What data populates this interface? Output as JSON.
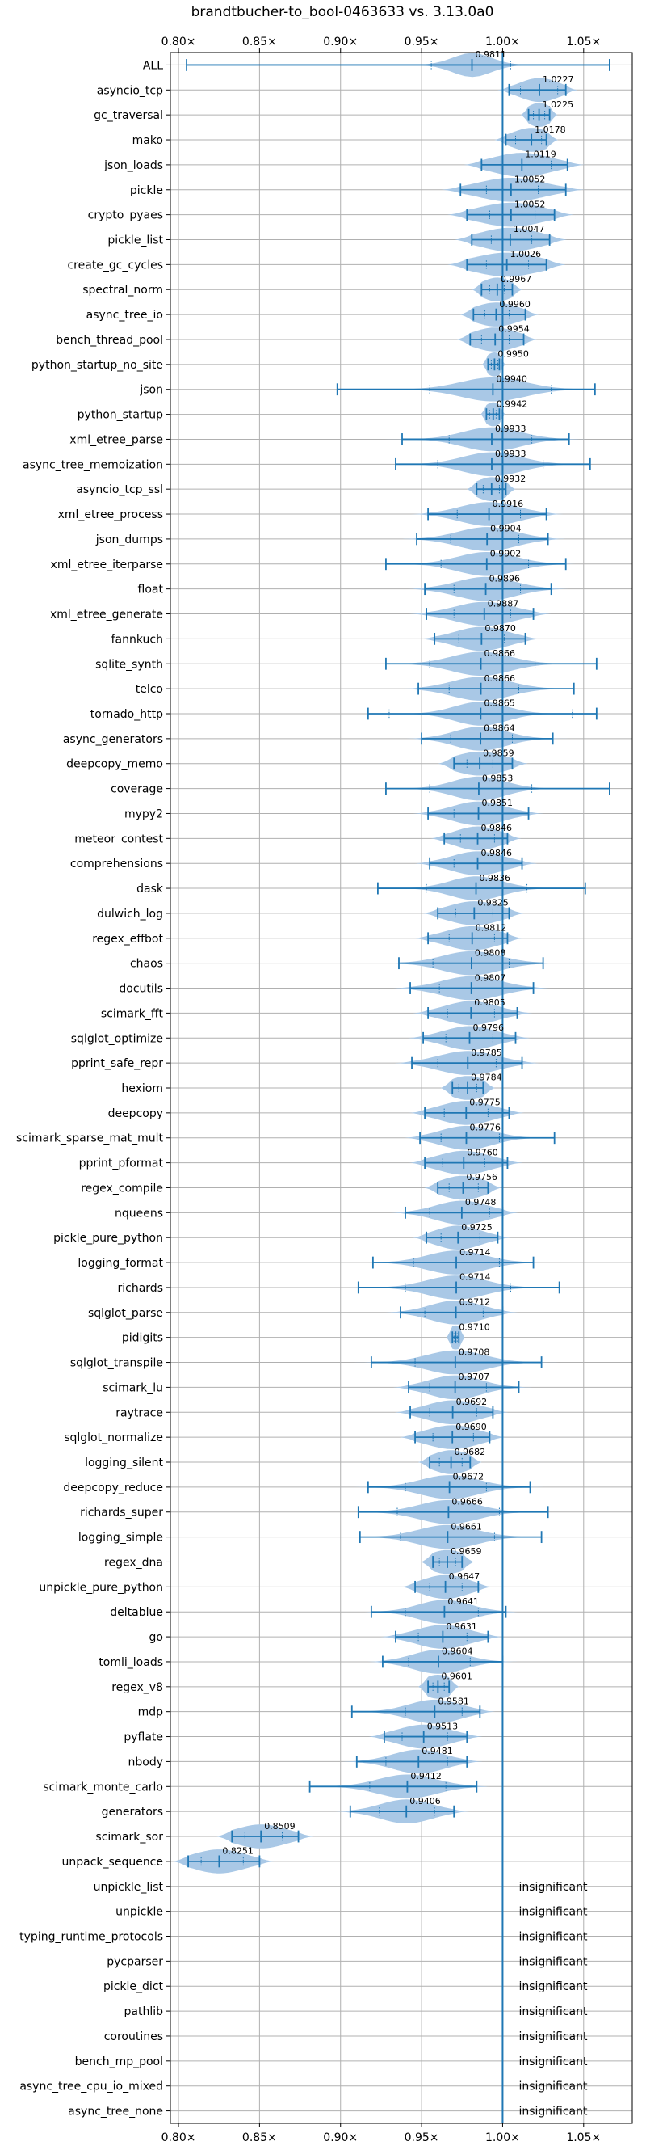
{
  "chart_data": {
    "type": "violin",
    "title": "brandtbucher-to_bool-0463633 vs. 3.13.0a0",
    "x_ticks": [
      {
        "value": 0.8,
        "label": "0.80×"
      },
      {
        "value": 0.85,
        "label": "0.85×"
      },
      {
        "value": 0.9,
        "label": "0.90×"
      },
      {
        "value": 0.95,
        "label": "0.95×"
      },
      {
        "value": 1.0,
        "label": "1.00×"
      },
      {
        "value": 1.05,
        "label": "1.05×"
      }
    ],
    "xlim": [
      0.795,
      1.08
    ],
    "reference_line": 1.0,
    "grid": true,
    "colors": {
      "violin": "#a9c8e6",
      "line": "#1f77b4",
      "grid": "#b0b0b0"
    },
    "insignificant_text": "insignificant",
    "benchmarks": [
      {
        "name": "ALL",
        "label": "0.9811",
        "mean": 0.9811,
        "min": 0.805,
        "max": 1.066,
        "q1": 0.956,
        "q3": 1.005,
        "spread": 0.012
      },
      {
        "name": "asyncio_tcp",
        "label": "1.0227",
        "mean": 1.0227,
        "min": 1.004,
        "max": 1.039,
        "q1": 1.011,
        "q3": 1.034,
        "spread": 0.012
      },
      {
        "name": "gc_traversal",
        "label": "1.0225",
        "mean": 1.0225,
        "min": 1.016,
        "max": 1.029,
        "q1": 1.019,
        "q3": 1.026,
        "spread": 0.008
      },
      {
        "name": "mako",
        "label": "1.0178",
        "mean": 1.0178,
        "min": 1.002,
        "max": 1.027,
        "q1": 1.008,
        "q3": 1.024,
        "spread": 0.012
      },
      {
        "name": "json_loads",
        "label": "1.0119",
        "mean": 1.0119,
        "min": 0.987,
        "max": 1.04,
        "q1": 0.999,
        "q3": 1.03,
        "spread": 0.018
      },
      {
        "name": "pickle",
        "label": "1.0052",
        "mean": 1.0052,
        "min": 0.974,
        "max": 1.039,
        "q1": 0.99,
        "q3": 1.022,
        "spread": 0.02
      },
      {
        "name": "crypto_pyaes",
        "label": "1.0052",
        "mean": 1.0052,
        "min": 0.978,
        "max": 1.032,
        "q1": 0.992,
        "q3": 1.02,
        "spread": 0.02
      },
      {
        "name": "pickle_list",
        "label": "1.0047",
        "mean": 1.0047,
        "min": 0.981,
        "max": 1.029,
        "q1": 0.993,
        "q3": 1.018,
        "spread": 0.018
      },
      {
        "name": "create_gc_cycles",
        "label": "1.0026",
        "mean": 1.0026,
        "min": 0.978,
        "max": 1.027,
        "q1": 0.99,
        "q3": 1.016,
        "spread": 0.02
      },
      {
        "name": "spectral_norm",
        "label": "0.9967",
        "mean": 0.9967,
        "min": 0.987,
        "max": 1.006,
        "q1": 0.992,
        "q3": 1.001,
        "spread": 0.01
      },
      {
        "name": "async_tree_io",
        "label": "0.9960",
        "mean": 0.996,
        "min": 0.982,
        "max": 1.014,
        "q1": 0.989,
        "q3": 1.004,
        "spread": 0.014
      },
      {
        "name": "bench_thread_pool",
        "label": "0.9954",
        "mean": 0.9954,
        "min": 0.98,
        "max": 1.013,
        "q1": 0.987,
        "q3": 1.004,
        "spread": 0.014
      },
      {
        "name": "python_startup_no_site",
        "label": "0.9950",
        "mean": 0.995,
        "min": 0.991,
        "max": 0.998,
        "q1": 0.993,
        "q3": 0.997,
        "spread": 0.006
      },
      {
        "name": "json",
        "label": "0.9940",
        "mean": 0.994,
        "min": 0.898,
        "max": 1.057,
        "q1": 0.955,
        "q3": 1.03,
        "spread": 0.02
      },
      {
        "name": "python_startup",
        "label": "0.9942",
        "mean": 0.9942,
        "min": 0.99,
        "max": 0.998,
        "q1": 0.992,
        "q3": 0.996,
        "spread": 0.006
      },
      {
        "name": "xml_etree_parse",
        "label": "0.9933",
        "mean": 0.9933,
        "min": 0.938,
        "max": 1.041,
        "q1": 0.967,
        "q3": 1.018,
        "spread": 0.018
      },
      {
        "name": "async_tree_memoization",
        "label": "0.9933",
        "mean": 0.9933,
        "min": 0.934,
        "max": 1.054,
        "q1": 0.96,
        "q3": 1.025,
        "spread": 0.018
      },
      {
        "name": "asyncio_tcp_ssl",
        "label": "0.9932",
        "mean": 0.9932,
        "min": 0.984,
        "max": 1.002,
        "q1": 0.988,
        "q3": 0.998,
        "spread": 0.01
      },
      {
        "name": "xml_etree_process",
        "label": "0.9916",
        "mean": 0.9916,
        "min": 0.954,
        "max": 1.027,
        "q1": 0.972,
        "q3": 1.011,
        "spread": 0.018
      },
      {
        "name": "json_dumps",
        "label": "0.9904",
        "mean": 0.9904,
        "min": 0.947,
        "max": 1.028,
        "q1": 0.968,
        "q3": 1.01,
        "spread": 0.018
      },
      {
        "name": "xml_etree_iterparse",
        "label": "0.9902",
        "mean": 0.9902,
        "min": 0.928,
        "max": 1.039,
        "q1": 0.962,
        "q3": 1.016,
        "spread": 0.018
      },
      {
        "name": "float",
        "label": "0.9896",
        "mean": 0.9896,
        "min": 0.952,
        "max": 1.03,
        "q1": 0.97,
        "q3": 1.011,
        "spread": 0.018
      },
      {
        "name": "xml_etree_generate",
        "label": "0.9887",
        "mean": 0.9887,
        "min": 0.953,
        "max": 1.019,
        "q1": 0.97,
        "q3": 1.005,
        "spread": 0.018
      },
      {
        "name": "fannkuch",
        "label": "0.9870",
        "mean": 0.987,
        "min": 0.958,
        "max": 1.014,
        "q1": 0.973,
        "q3": 1.001,
        "spread": 0.016
      },
      {
        "name": "sqlite_synth",
        "label": "0.9866",
        "mean": 0.9866,
        "min": 0.928,
        "max": 1.058,
        "q1": 0.955,
        "q3": 1.02,
        "spread": 0.018
      },
      {
        "name": "telco",
        "label": "0.9866",
        "mean": 0.9866,
        "min": 0.948,
        "max": 1.044,
        "q1": 0.967,
        "q3": 1.01,
        "spread": 0.018
      },
      {
        "name": "tornado_http",
        "label": "0.9865",
        "mean": 0.9865,
        "min": 0.917,
        "max": 1.058,
        "q1": 0.93,
        "q3": 1.043,
        "spread": 0.016
      },
      {
        "name": "async_generators",
        "label": "0.9864",
        "mean": 0.9864,
        "min": 0.95,
        "max": 1.031,
        "q1": 0.968,
        "q3": 1.006,
        "spread": 0.016
      },
      {
        "name": "deepcopy_memo",
        "label": "0.9859",
        "mean": 0.9859,
        "min": 0.97,
        "max": 1.006,
        "q1": 0.978,
        "q3": 0.994,
        "spread": 0.016
      },
      {
        "name": "coverage",
        "label": "0.9853",
        "mean": 0.9853,
        "min": 0.928,
        "max": 1.066,
        "q1": 0.955,
        "q3": 1.018,
        "spread": 0.016
      },
      {
        "name": "mypy2",
        "label": "0.9851",
        "mean": 0.9851,
        "min": 0.954,
        "max": 1.016,
        "q1": 0.97,
        "q3": 1.0,
        "spread": 0.016
      },
      {
        "name": "meteor_contest",
        "label": "0.9846",
        "mean": 0.9846,
        "min": 0.964,
        "max": 1.003,
        "q1": 0.974,
        "q3": 0.995,
        "spread": 0.014
      },
      {
        "name": "comprehensions",
        "label": "0.9846",
        "mean": 0.9846,
        "min": 0.955,
        "max": 1.012,
        "q1": 0.97,
        "q3": 0.999,
        "spread": 0.016
      },
      {
        "name": "dask",
        "label": "0.9836",
        "mean": 0.9836,
        "min": 0.923,
        "max": 1.051,
        "q1": 0.953,
        "q3": 1.015,
        "spread": 0.016
      },
      {
        "name": "dulwich_log",
        "label": "0.9825",
        "mean": 0.9825,
        "min": 0.96,
        "max": 1.004,
        "q1": 0.971,
        "q3": 0.994,
        "spread": 0.016
      },
      {
        "name": "regex_effbot",
        "label": "0.9812",
        "mean": 0.9812,
        "min": 0.954,
        "max": 1.003,
        "q1": 0.967,
        "q3": 0.995,
        "spread": 0.016
      },
      {
        "name": "chaos",
        "label": "0.9808",
        "mean": 0.9808,
        "min": 0.936,
        "max": 1.025,
        "q1": 0.957,
        "q3": 1.004,
        "spread": 0.018
      },
      {
        "name": "docutils",
        "label": "0.9807",
        "mean": 0.9807,
        "min": 0.943,
        "max": 1.019,
        "q1": 0.961,
        "q3": 1.0,
        "spread": 0.018
      },
      {
        "name": "scimark_fft",
        "label": "0.9805",
        "mean": 0.9805,
        "min": 0.954,
        "max": 1.009,
        "q1": 0.966,
        "q3": 0.995,
        "spread": 0.016
      },
      {
        "name": "sqlglot_optimize",
        "label": "0.9796",
        "mean": 0.9796,
        "min": 0.951,
        "max": 1.008,
        "q1": 0.965,
        "q3": 0.994,
        "spread": 0.016
      },
      {
        "name": "pprint_safe_repr",
        "label": "0.9785",
        "mean": 0.9785,
        "min": 0.944,
        "max": 1.012,
        "q1": 0.96,
        "q3": 0.996,
        "spread": 0.018
      },
      {
        "name": "hexiom",
        "label": "0.9784",
        "mean": 0.9784,
        "min": 0.969,
        "max": 0.988,
        "q1": 0.973,
        "q3": 0.984,
        "spread": 0.012
      },
      {
        "name": "deepcopy",
        "label": "0.9775",
        "mean": 0.9775,
        "min": 0.952,
        "max": 1.004,
        "q1": 0.964,
        "q3": 0.991,
        "spread": 0.016
      },
      {
        "name": "scimark_sparse_mat_mult",
        "label": "0.9776",
        "mean": 0.9776,
        "min": 0.949,
        "max": 1.032,
        "q1": 0.962,
        "q3": 0.998,
        "spread": 0.016
      },
      {
        "name": "pprint_pformat",
        "label": "0.9760",
        "mean": 0.976,
        "min": 0.952,
        "max": 1.003,
        "q1": 0.963,
        "q3": 0.989,
        "spread": 0.016
      },
      {
        "name": "regex_compile",
        "label": "0.9756",
        "mean": 0.9756,
        "min": 0.96,
        "max": 0.991,
        "q1": 0.967,
        "q3": 0.985,
        "spread": 0.014
      },
      {
        "name": "nqueens",
        "label": "0.9748",
        "mean": 0.9748,
        "min": 0.94,
        "max": 1.0,
        "q1": 0.955,
        "q3": 0.992,
        "spread": 0.016
      },
      {
        "name": "pickle_pure_python",
        "label": "0.9725",
        "mean": 0.9725,
        "min": 0.953,
        "max": 0.997,
        "q1": 0.962,
        "q3": 0.986,
        "spread": 0.014
      },
      {
        "name": "logging_format",
        "label": "0.9714",
        "mean": 0.9714,
        "min": 0.92,
        "max": 1.019,
        "q1": 0.945,
        "q3": 0.998,
        "spread": 0.018
      },
      {
        "name": "richards",
        "label": "0.9714",
        "mean": 0.9714,
        "min": 0.911,
        "max": 1.035,
        "q1": 0.94,
        "q3": 1.005,
        "spread": 0.018
      },
      {
        "name": "sqlglot_parse",
        "label": "0.9712",
        "mean": 0.9712,
        "min": 0.937,
        "max": 1.0,
        "q1": 0.952,
        "q3": 0.988,
        "spread": 0.016
      },
      {
        "name": "pidigits",
        "label": "0.9710",
        "mean": 0.971,
        "min": 0.969,
        "max": 0.973,
        "q1": 0.97,
        "q3": 0.972,
        "spread": 0.006
      },
      {
        "name": "sqlglot_transpile",
        "label": "0.9708",
        "mean": 0.9708,
        "min": 0.919,
        "max": 1.024,
        "q1": 0.946,
        "q3": 1.0,
        "spread": 0.018
      },
      {
        "name": "scimark_lu",
        "label": "0.9707",
        "mean": 0.9707,
        "min": 0.942,
        "max": 1.01,
        "q1": 0.955,
        "q3": 0.99,
        "spread": 0.016
      },
      {
        "name": "raytrace",
        "label": "0.9692",
        "mean": 0.9692,
        "min": 0.943,
        "max": 0.994,
        "q1": 0.955,
        "q3": 0.984,
        "spread": 0.016
      },
      {
        "name": "sqlglot_normalize",
        "label": "0.9690",
        "mean": 0.969,
        "min": 0.946,
        "max": 0.992,
        "q1": 0.957,
        "q3": 0.982,
        "spread": 0.016
      },
      {
        "name": "logging_silent",
        "label": "0.9682",
        "mean": 0.9682,
        "min": 0.955,
        "max": 0.98,
        "q1": 0.961,
        "q3": 0.975,
        "spread": 0.012
      },
      {
        "name": "deepcopy_reduce",
        "label": "0.9672",
        "mean": 0.9672,
        "min": 0.917,
        "max": 1.017,
        "q1": 0.94,
        "q3": 0.99,
        "spread": 0.018
      },
      {
        "name": "richards_super",
        "label": "0.9666",
        "mean": 0.9666,
        "min": 0.911,
        "max": 1.028,
        "q1": 0.935,
        "q3": 0.998,
        "spread": 0.018
      },
      {
        "name": "logging_simple",
        "label": "0.9661",
        "mean": 0.9661,
        "min": 0.912,
        "max": 1.024,
        "q1": 0.937,
        "q3": 0.995,
        "spread": 0.018
      },
      {
        "name": "regex_dna",
        "label": "0.9659",
        "mean": 0.9659,
        "min": 0.957,
        "max": 0.975,
        "q1": 0.961,
        "q3": 0.971,
        "spread": 0.012
      },
      {
        "name": "unpickle_pure_python",
        "label": "0.9647",
        "mean": 0.9647,
        "min": 0.946,
        "max": 0.985,
        "q1": 0.955,
        "q3": 0.975,
        "spread": 0.014
      },
      {
        "name": "deltablue",
        "label": "0.9641",
        "mean": 0.9641,
        "min": 0.919,
        "max": 1.002,
        "q1": 0.94,
        "q3": 0.985,
        "spread": 0.016
      },
      {
        "name": "go",
        "label": "0.9631",
        "mean": 0.9631,
        "min": 0.934,
        "max": 0.991,
        "q1": 0.948,
        "q3": 0.978,
        "spread": 0.016
      },
      {
        "name": "tomli_loads",
        "label": "0.9604",
        "mean": 0.9604,
        "min": 0.926,
        "max": 1.0,
        "q1": 0.942,
        "q3": 0.98,
        "spread": 0.016
      },
      {
        "name": "regex_v8",
        "label": "0.9601",
        "mean": 0.9601,
        "min": 0.954,
        "max": 0.967,
        "q1": 0.957,
        "q3": 0.964,
        "spread": 0.01
      },
      {
        "name": "mdp",
        "label": "0.9581",
        "mean": 0.9581,
        "min": 0.907,
        "max": 0.986,
        "q1": 0.94,
        "q3": 0.975,
        "spread": 0.016
      },
      {
        "name": "pyflate",
        "label": "0.9513",
        "mean": 0.9513,
        "min": 0.927,
        "max": 0.978,
        "q1": 0.938,
        "q3": 0.966,
        "spread": 0.016
      },
      {
        "name": "nbody",
        "label": "0.9481",
        "mean": 0.9481,
        "min": 0.91,
        "max": 0.978,
        "q1": 0.928,
        "q3": 0.966,
        "spread": 0.016
      },
      {
        "name": "scimark_monte_carlo",
        "label": "0.9412",
        "mean": 0.9412,
        "min": 0.881,
        "max": 0.984,
        "q1": 0.918,
        "q3": 0.965,
        "spread": 0.018
      },
      {
        "name": "generators",
        "label": "0.9406",
        "mean": 0.9406,
        "min": 0.906,
        "max": 0.97,
        "q1": 0.924,
        "q3": 0.958,
        "spread": 0.016
      },
      {
        "name": "scimark_sor",
        "label": "0.8509",
        "mean": 0.8509,
        "min": 0.833,
        "max": 0.874,
        "q1": 0.841,
        "q3": 0.864,
        "spread": 0.016
      },
      {
        "name": "unpack_sequence",
        "label": "0.8251",
        "mean": 0.8251,
        "min": 0.806,
        "max": 0.85,
        "q1": 0.814,
        "q3": 0.84,
        "spread": 0.016
      },
      {
        "name": "unpickle_list",
        "insignificant": true
      },
      {
        "name": "unpickle",
        "insignificant": true
      },
      {
        "name": "typing_runtime_protocols",
        "insignificant": true
      },
      {
        "name": "pycparser",
        "insignificant": true
      },
      {
        "name": "pickle_dict",
        "insignificant": true
      },
      {
        "name": "pathlib",
        "insignificant": true
      },
      {
        "name": "coroutines",
        "insignificant": true
      },
      {
        "name": "bench_mp_pool",
        "insignificant": true
      },
      {
        "name": "async_tree_cpu_io_mixed",
        "insignificant": true
      },
      {
        "name": "async_tree_none",
        "insignificant": true
      }
    ]
  }
}
